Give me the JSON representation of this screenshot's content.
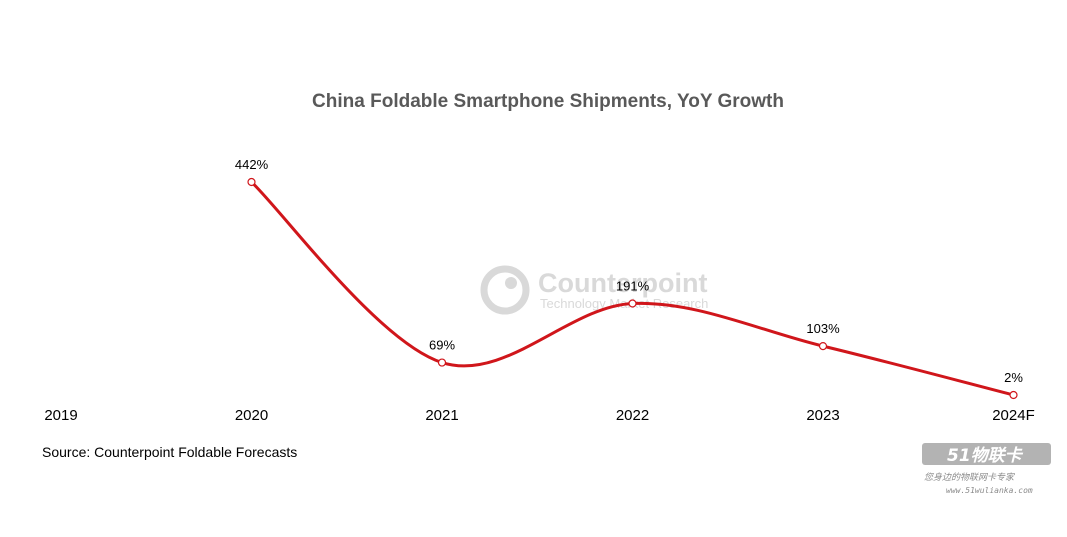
{
  "chart_data": {
    "type": "line",
    "title": "China Foldable Smartphone Shipments, YoY Growth",
    "categories": [
      "2019",
      "2020",
      "2021",
      "2022",
      "2023",
      "2024F"
    ],
    "values": [
      null,
      442,
      69,
      191,
      103,
      2
    ],
    "data_labels": [
      "",
      "442%",
      "69%",
      "191%",
      "103%",
      "2%"
    ],
    "series_color": "#d0161b",
    "marker_fill": "#ffffff",
    "grid": false,
    "legend": "none",
    "ylim": [
      0,
      500
    ]
  },
  "source": "Source: Counterpoint Foldable Forecasts",
  "watermark": {
    "brand": "Counterpoint",
    "tagline": "Technology Market Research"
  },
  "stamp": {
    "brand": "51物联卡",
    "slogan": "您身边的物联网卡专家",
    "url": "www.51wulianka.com"
  }
}
